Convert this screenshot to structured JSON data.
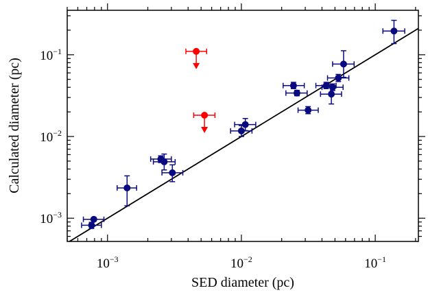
{
  "chart_data": {
    "type": "scatter",
    "title": "",
    "xlabel": "SED diameter (pc)",
    "ylabel": "Calculated diameter (pc)",
    "xscale": "log",
    "yscale": "log",
    "xlim": [
      0.0005,
      0.21
    ],
    "ylim": [
      0.00052,
      0.35
    ],
    "x_ticks": [
      {
        "base": "10",
        "exp": "−3",
        "value": 0.001
      },
      {
        "base": "10",
        "exp": "−2",
        "value": 0.01
      },
      {
        "base": "10",
        "exp": "−1",
        "value": 0.1
      }
    ],
    "y_ticks": [
      {
        "base": "10",
        "exp": "−3",
        "value": 0.001
      },
      {
        "base": "10",
        "exp": "−2",
        "value": 0.01
      },
      {
        "base": "10",
        "exp": "−1",
        "value": 0.1
      }
    ],
    "grid": false,
    "reference_line": {
      "type": "y=x",
      "color": "#000000"
    },
    "series": [
      {
        "color": "#0a0a80",
        "points": [
          {
            "x": 0.00079,
            "y": 0.00097,
            "xerr": [
              0.00066,
              0.00094
            ],
            "yerr": [
              0.00092,
              0.00102
            ]
          },
          {
            "x": 0.00076,
            "y": 0.00082,
            "xerr": [
              0.00064,
              0.0009
            ],
            "yerr": [
              0.00075,
              0.00089
            ]
          },
          {
            "x": 0.0014,
            "y": 0.00235,
            "xerr": [
              0.00118,
              0.00165
            ],
            "yerr": [
              0.00142,
              0.0033
            ]
          },
          {
            "x": 0.0025,
            "y": 0.0053,
            "xerr": [
              0.0021,
              0.003
            ],
            "yerr": [
              0.0048,
              0.0058
            ]
          },
          {
            "x": 0.00265,
            "y": 0.0049,
            "xerr": [
              0.0022,
              0.0032
            ],
            "yerr": [
              0.0039,
              0.0061
            ]
          },
          {
            "x": 0.00305,
            "y": 0.0036,
            "xerr": [
              0.00255,
              0.00365
            ],
            "yerr": [
              0.0028,
              0.0045
            ]
          },
          {
            "x": 0.01,
            "y": 0.0117,
            "xerr": [
              0.0083,
              0.012
            ],
            "yerr": [
              0.01,
              0.0136
            ]
          },
          {
            "x": 0.0107,
            "y": 0.014,
            "xerr": [
              0.0089,
              0.0128
            ],
            "yerr": [
              0.0118,
              0.0166
            ]
          },
          {
            "x": 0.0245,
            "y": 0.042,
            "xerr": [
              0.0205,
              0.0295
            ],
            "yerr": [
              0.0385,
              0.046
            ]
          },
          {
            "x": 0.026,
            "y": 0.034,
            "xerr": [
              0.0215,
              0.031
            ],
            "yerr": [
              0.0315,
              0.0367
            ]
          },
          {
            "x": 0.0315,
            "y": 0.021,
            "xerr": [
              0.0265,
              0.0375
            ],
            "yerr": [
              0.019,
              0.0232
            ]
          },
          {
            "x": 0.043,
            "y": 0.042,
            "xerr": [
              0.036,
              0.051
            ],
            "yerr": [
              0.0385,
              0.046
            ]
          },
          {
            "x": 0.048,
            "y": 0.04,
            "xerr": [
              0.04,
              0.0575
            ],
            "yerr": [
              0.0365,
              0.044
            ]
          },
          {
            "x": 0.047,
            "y": 0.033,
            "xerr": [
              0.039,
              0.056
            ],
            "yerr": [
              0.025,
              0.0435
            ]
          },
          {
            "x": 0.053,
            "y": 0.052,
            "xerr": [
              0.044,
              0.0635
            ],
            "yerr": [
              0.047,
              0.0575
            ]
          },
          {
            "x": 0.058,
            "y": 0.077,
            "xerr": [
              0.048,
              0.0695
            ],
            "yerr": [
              0.053,
              0.112
            ]
          },
          {
            "x": 0.138,
            "y": 0.195,
            "xerr": [
              0.114,
              0.166
            ],
            "yerr": [
              0.137,
              0.264
            ]
          }
        ]
      },
      {
        "color": "#ff0000",
        "upper_limits": true,
        "points": [
          {
            "x": 0.0046,
            "y": 0.11,
            "xerr": [
              0.00385,
              0.0055
            ]
          },
          {
            "x": 0.0053,
            "y": 0.0182,
            "xerr": [
              0.0044,
              0.00635
            ]
          }
        ]
      }
    ]
  }
}
